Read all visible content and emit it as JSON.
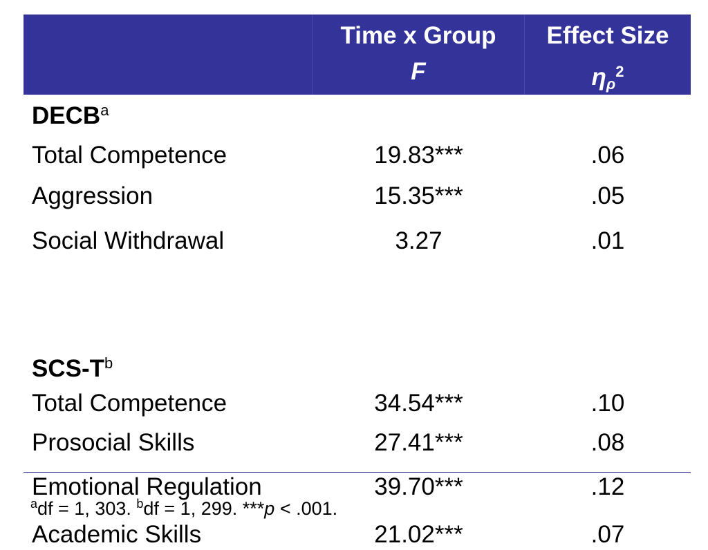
{
  "table": {
    "headers": [
      {
        "line1": "",
        "line2": ""
      },
      {
        "line1": "Time x Group",
        "line2": "F"
      },
      {
        "line1": "Effect Size",
        "symbol": "η",
        "subscript": "ρ",
        "superscript": "2"
      }
    ],
    "sections": [
      {
        "title": "DECB",
        "title_sup": "a",
        "rows": [
          {
            "label": "Total Competence",
            "f": "19.83***",
            "effect": ".06"
          },
          {
            "label": "Aggression",
            "f": "15.35***",
            "effect": ".05"
          },
          {
            "label": "Social Withdrawal",
            "f": "3.27",
            "effect": ".01"
          }
        ]
      },
      {
        "title": "SCS-T",
        "title_sup": "b",
        "rows": [
          {
            "label": "Total Competence",
            "f": "34.54***",
            "effect": ".10"
          },
          {
            "label": "Prosocial Skills",
            "f": "27.41***",
            "effect": ".08"
          },
          {
            "label": "Emotional Regulation",
            "f": "39.70***",
            "effect": ".12"
          },
          {
            "label": "Academic Skills",
            "f": "21.02***",
            "effect": ".07"
          }
        ]
      }
    ]
  },
  "footnote": {
    "a_mark": "a",
    "a_text": "df = 1, 303. ",
    "b_mark": "b",
    "b_text": "df = 1, 299. ***",
    "p_symbol": "p",
    "p_text": " < .001."
  },
  "colors": {
    "header_bg": "#333399",
    "header_text": "#ffffff",
    "rule": "#333399"
  }
}
